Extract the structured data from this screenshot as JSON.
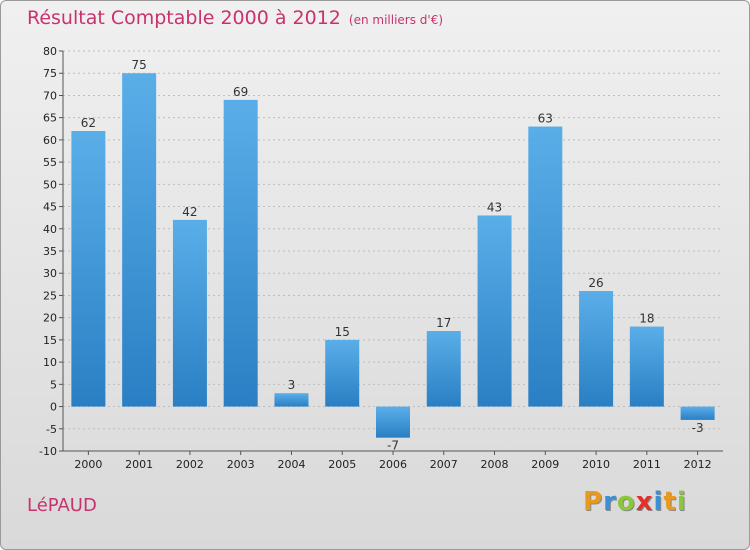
{
  "header": {
    "title": "Résultat Comptable 2000 à 2012",
    "subtitle": "(en milliers d'€)"
  },
  "footer": {
    "commune": "LéPAUD",
    "logo_letters": [
      "P",
      "r",
      "o",
      "x",
      "i",
      "t",
      "i"
    ],
    "logo_colors": [
      "#e89a1c",
      "#3a8fd6",
      "#8cc63f",
      "#e0322b",
      "#3a8fd6",
      "#e89a1c",
      "#8cc63f"
    ]
  },
  "colors": {
    "bar_light": "#5aaee8",
    "bar_dark": "#2a7fc4",
    "title": "#c8326e"
  },
  "chart_data": {
    "type": "bar",
    "title": "Résultat Comptable 2000 à 2012",
    "subtitle": "(en milliers d'€)",
    "xlabel": "",
    "ylabel": "",
    "categories": [
      "2000",
      "2001",
      "2002",
      "2003",
      "2004",
      "2005",
      "2006",
      "2007",
      "2008",
      "2009",
      "2010",
      "2011",
      "2012"
    ],
    "values": [
      62,
      75,
      42,
      69,
      3,
      15,
      -7,
      17,
      43,
      63,
      26,
      18,
      -3
    ],
    "ylim": [
      -10,
      80
    ],
    "yticks": [
      80,
      75,
      70,
      65,
      60,
      55,
      50,
      45,
      40,
      35,
      30,
      25,
      20,
      15,
      10,
      5,
      0,
      -5,
      -10
    ],
    "grid": true
  }
}
